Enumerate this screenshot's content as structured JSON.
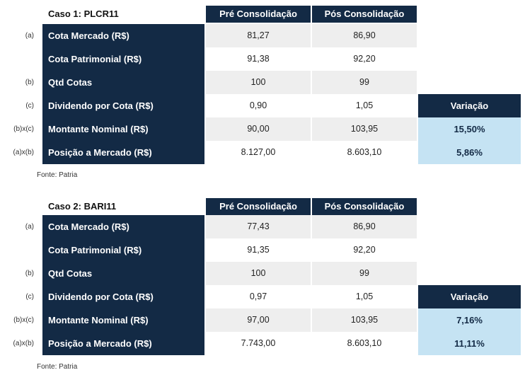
{
  "tables": [
    {
      "title": "Caso 1: PLCR11",
      "col_pre": "Pré Consolidação",
      "col_pos": "Pós Consolidação",
      "variation_header": "Variação",
      "rows": [
        {
          "tag": "(a)",
          "label": "Cota Mercado (R$)",
          "pre": "81,27",
          "pos": "86,90",
          "var": ""
        },
        {
          "tag": "",
          "label": "Cota Patrimonial (R$)",
          "pre": "91,38",
          "pos": "92,20",
          "var": ""
        },
        {
          "tag": "(b)",
          "label": "Qtd Cotas",
          "pre": "100",
          "pos": "99",
          "var": ""
        },
        {
          "tag": "(c)",
          "label": "Dividendo por Cota (R$)",
          "pre": "0,90",
          "pos": "1,05",
          "var": ""
        },
        {
          "tag": "(b)x(c)",
          "label": "Montante Nominal (R$)",
          "pre": "90,00",
          "pos": "103,95",
          "var": "15,50%"
        },
        {
          "tag": "(a)x(b)",
          "label": "Posição a Mercado (R$)",
          "pre": "8.127,00",
          "pos": "8.603,10",
          "var": "5,86%"
        }
      ],
      "source": "Fonte: Patria"
    },
    {
      "title": "Caso 2: BARI11",
      "col_pre": "Pré Consolidação",
      "col_pos": "Pós Consolidação",
      "variation_header": "Variação",
      "rows": [
        {
          "tag": "(a)",
          "label": "Cota Mercado (R$)",
          "pre": "77,43",
          "pos": "86,90",
          "var": ""
        },
        {
          "tag": "",
          "label": "Cota Patrimonial (R$)",
          "pre": "91,35",
          "pos": "92,20",
          "var": ""
        },
        {
          "tag": "(b)",
          "label": "Qtd Cotas",
          "pre": "100",
          "pos": "99",
          "var": ""
        },
        {
          "tag": "(c)",
          "label": "Dividendo por Cota (R$)",
          "pre": "0,97",
          "pos": "1,05",
          "var": ""
        },
        {
          "tag": "(b)x(c)",
          "label": "Montante Nominal (R$)",
          "pre": "97,00",
          "pos": "103,95",
          "var": "7,16%"
        },
        {
          "tag": "(a)x(b)",
          "label": "Posição a Mercado (R$)",
          "pre": "7.743,00",
          "pos": "8.603,10",
          "var": "11,11%"
        }
      ],
      "source": "Fonte: Patria"
    }
  ]
}
